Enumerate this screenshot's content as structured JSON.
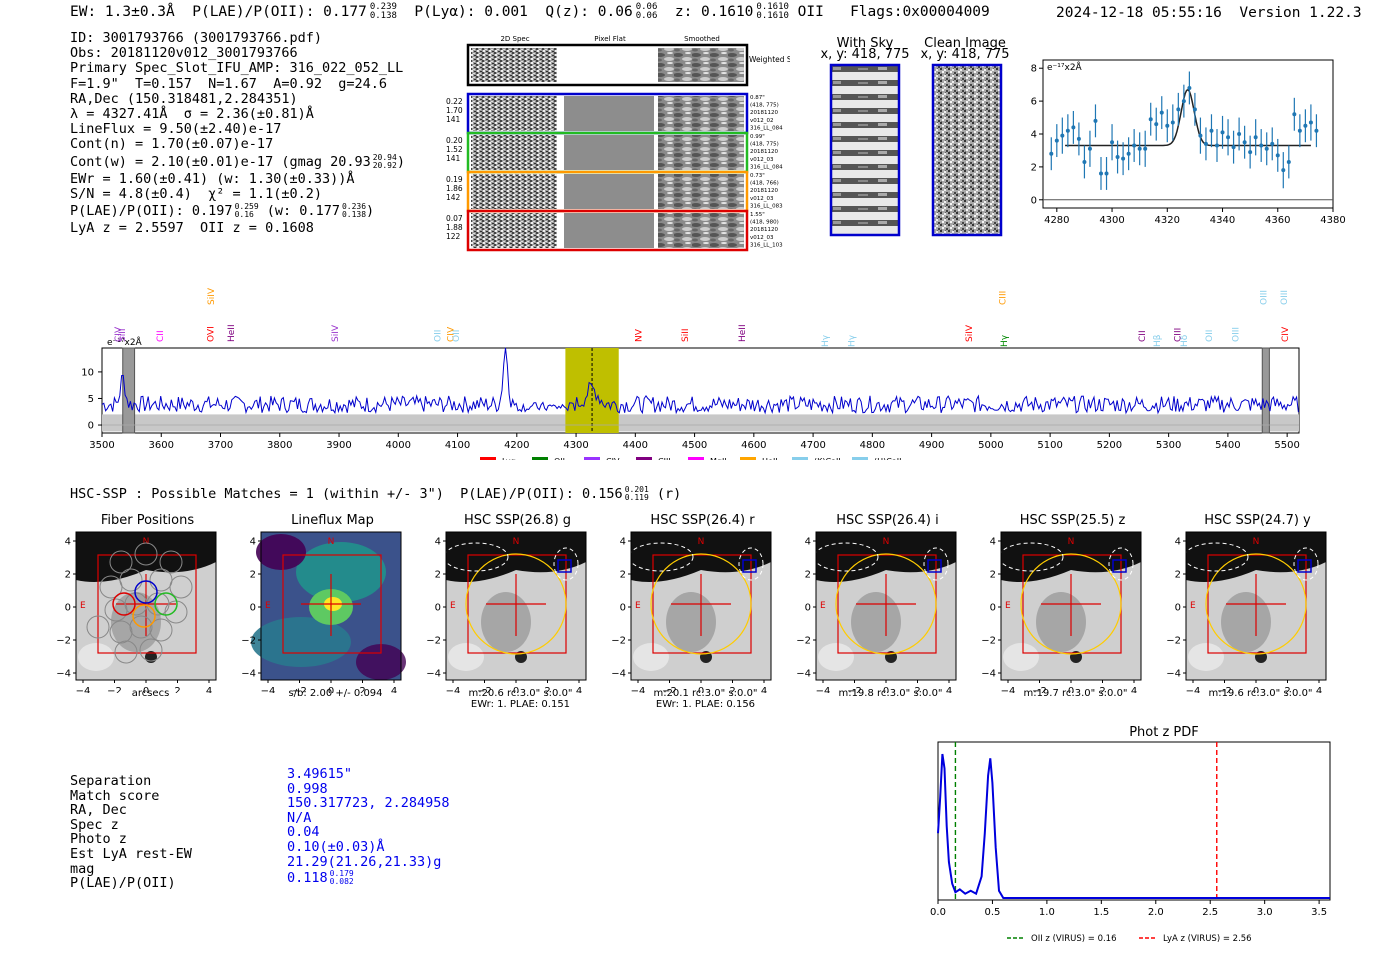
{
  "header": {
    "ew": "EW: 1.3±0.3Å",
    "plae_label": "P(LAE)/P(OII): 0.177",
    "plae_hi": "0.239",
    "plae_lo": "0.138",
    "plya": "P(Lyα): 0.001",
    "q_label": "Q(z): 0.06",
    "q_hi": "0.06",
    "q_lo": "0.06",
    "z_label": "z: 0.1610",
    "z_hi": "0.1610",
    "z_lo": "0.1610",
    "z_line": "OII",
    "flags": "Flags:0x00004009",
    "datetime": "2024-12-18 05:55:16",
    "version": "Version 1.22.3"
  },
  "info": {
    "lines": [
      "ID: 3001793766 (3001793766.pdf)",
      "Obs: 20181120v012_3001793766",
      "Primary Spec_Slot_IFU_AMP: 316_022_052_LL",
      "F=1.9\"  T=0.157  N=1.67  A=0.92  g=24.6",
      "RA,Dec (150.318481,2.284351)",
      "λ = 4327.41Å  σ = 2.36(±0.81)Å",
      "LineFlux = 9.50(±2.40)e-17",
      "Cont(n) = 1.70(±0.07)e-17",
      "Cont(w) = 2.10(±0.01)e-17 (gmag 20.93",
      "EWr = 1.60(±0.41) (w: 1.30(±0.33))Å",
      "S/N = 4.8(±0.4)  χ² = 1.1(±0.2)",
      "P(LAE)/P(OII): 0.197",
      "LyA z = 2.5597  OII z = 0.1608"
    ],
    "gmag_hi": "20.94",
    "gmag_lo": "20.92",
    "plae2_hi": "0.259",
    "plae2_lo": "0.16",
    "plae2_w": "(w: 0.177",
    "plae2_w_hi": "0.236",
    "plae2_w_lo": "0.138"
  },
  "cutouts": {
    "col_titles": [
      "2D Spec",
      "Pixel Flat",
      "Smoothed"
    ],
    "weighted_sum": "Weighted Sum",
    "rows": [
      {
        "left": [
          "0.22",
          "1.70",
          "141"
        ],
        "right": [
          "0.87\"",
          "(418, 775)",
          "20181120",
          "v012_02",
          "316_LL_084"
        ],
        "color": "#0000cc"
      },
      {
        "left": [
          "0.20",
          "1.52",
          "141"
        ],
        "right": [
          "0.99\"",
          "(418, 775)",
          "20181120",
          "v012_03",
          "316_LL_084"
        ],
        "color": "#22bb22"
      },
      {
        "left": [
          "0.19",
          "1.86",
          "142"
        ],
        "right": [
          "0.73\"",
          "(418, 766)",
          "20181120",
          "v012_03",
          "316_LL_083"
        ],
        "color": "#ff9900"
      },
      {
        "left": [
          "0.07",
          "1.88",
          "122"
        ],
        "right": [
          "1.55\"",
          "(418, 980)",
          "20181120",
          "v012_03",
          "316_LL_103"
        ],
        "color": "#dd0000"
      }
    ],
    "with_sky_title": "With Sky",
    "with_sky_coord": "x, y: 418, 775",
    "clean_title": "Clean Image",
    "clean_coord": "x, y: 418, 775"
  },
  "chart_data": [
    {
      "id": "line_fit",
      "type": "scatter",
      "title": "",
      "unit_label": "e⁻¹⁷x2Å",
      "xlim": [
        4275,
        4380
      ],
      "ylim": [
        -0.5,
        8.5
      ],
      "xticks": [
        "4280",
        "4300",
        "4320",
        "4340",
        "4360",
        "4380"
      ],
      "yticks": [
        "0",
        "2",
        "4",
        "6",
        "8"
      ],
      "x": [
        4278,
        4280,
        4282,
        4284,
        4286,
        4288,
        4290,
        4292,
        4294,
        4296,
        4298,
        4300,
        4302,
        4304,
        4306,
        4308,
        4310,
        4312,
        4314,
        4316,
        4318,
        4320,
        4322,
        4324,
        4326,
        4328,
        4330,
        4332,
        4334,
        4336,
        4338,
        4340,
        4342,
        4344,
        4346,
        4348,
        4350,
        4352,
        4354,
        4356,
        4358,
        4360,
        4362,
        4364,
        4366,
        4368,
        4370,
        4372,
        4374
      ],
      "y": [
        2.8,
        3.6,
        3.9,
        4.2,
        4.4,
        3.7,
        2.3,
        3.1,
        4.8,
        1.6,
        1.6,
        3.5,
        2.6,
        2.5,
        2.8,
        3.3,
        3.1,
        3.1,
        4.9,
        4.6,
        5.3,
        4.5,
        4.7,
        5.5,
        6.0,
        6.8,
        5.5,
        3.9,
        3.4,
        4.2,
        3.3,
        4.1,
        3.8,
        3.2,
        4.0,
        3.5,
        2.9,
        3.8,
        3.3,
        3.1,
        3.4,
        2.7,
        1.8,
        2.3,
        5.2,
        4.2,
        4.5,
        4.7,
        4.2
      ],
      "yerr": [
        1.0,
        1.0,
        1.1,
        1.0,
        1.0,
        1.0,
        1.0,
        1.1,
        1.0,
        1.0,
        1.0,
        1.1,
        1.0,
        1.0,
        1.0,
        1.0,
        1.0,
        1.1,
        1.0,
        1.0,
        1.0,
        1.0,
        1.1,
        1.0,
        1.0,
        1.0,
        1.0,
        1.1,
        1.0,
        1.0,
        1.0,
        1.0,
        1.1,
        1.0,
        1.0,
        1.0,
        1.0,
        1.1,
        1.0,
        1.0,
        1.0,
        1.0,
        1.1,
        1.0,
        1.0,
        1.0,
        1.0,
        1.1,
        1.0
      ],
      "fit": {
        "continuum": 3.3,
        "amplitude": 3.4,
        "center": 4327.4,
        "sigma": 2.36
      }
    },
    {
      "id": "full_spectrum",
      "type": "line",
      "unit_label": "e⁻¹⁷x2Å",
      "xlim": [
        3500,
        5520
      ],
      "ylim": [
        -1.5,
        14.5
      ],
      "xticks": [
        "3500",
        "3600",
        "3700",
        "3800",
        "3900",
        "4000",
        "4100",
        "4200",
        "4300",
        "4400",
        "4500",
        "4600",
        "4700",
        "4800",
        "4900",
        "5000",
        "5100",
        "5200",
        "5300",
        "5400",
        "5500"
      ],
      "yticks": [
        "0",
        "5",
        "10"
      ],
      "baseline": 3.9,
      "spikes": [
        {
          "x": 3535,
          "y": 9.0
        },
        {
          "x": 3560,
          "y": 4.0
        },
        {
          "x": 4181,
          "y": 14.5
        },
        {
          "x": 4327,
          "y": 6.8
        }
      ],
      "highlight": [
        4282,
        4372
      ],
      "line_marker": 4327,
      "masked": [
        [
          3535,
          3555
        ],
        [
          5458,
          5470
        ]
      ],
      "emission_labels": [
        {
          "x": 3527,
          "text": "CIV",
          "color": "#9933cc",
          "row": 2
        },
        {
          "x": 3534,
          "text": "SiII",
          "color": "#9933cc",
          "row": 2
        },
        {
          "x": 3598,
          "text": "CII",
          "color": "#ff00ff",
          "row": 2
        },
        {
          "x": 3683,
          "text": "OVI",
          "color": "#ff0000",
          "row": 2
        },
        {
          "x": 3684,
          "text": "SiIV",
          "color": "#ff9900",
          "row": 0
        },
        {
          "x": 3718,
          "text": "HeII",
          "color": "#800080",
          "row": 2
        },
        {
          "x": 3893,
          "text": "SiIV",
          "color": "#9933cc",
          "row": 2
        },
        {
          "x": 4066,
          "text": "OII",
          "color": "#87ceeb",
          "row": 2
        },
        {
          "x": 4088,
          "text": "CIV",
          "color": "#ff9900",
          "row": 2
        },
        {
          "x": 4097,
          "text": "OII",
          "color": "#87ceeb",
          "row": 2
        },
        {
          "x": 4405,
          "text": "NV",
          "color": "#ff0000",
          "row": 2
        },
        {
          "x": 4484,
          "text": "SiII",
          "color": "#ff0000",
          "row": 2
        },
        {
          "x": 4580,
          "text": "HeII",
          "color": "#800080",
          "row": 2
        },
        {
          "x": 4720,
          "text": "Hγ",
          "color": "#87ceeb",
          "row": 3
        },
        {
          "x": 4765,
          "text": "Hγ",
          "color": "#87ceeb",
          "row": 3
        },
        {
          "x": 4963,
          "text": "SiIV",
          "color": "#ff0000",
          "row": 2
        },
        {
          "x": 5020,
          "text": "CIII",
          "color": "#ff9900",
          "row": 0
        },
        {
          "x": 5022,
          "text": "Hγ",
          "color": "#008800",
          "row": 3
        },
        {
          "x": 5255,
          "text": "CII",
          "color": "#800080",
          "row": 2
        },
        {
          "x": 5280,
          "text": "Hβ",
          "color": "#87ceeb",
          "row": 3
        },
        {
          "x": 5315,
          "text": "CIII",
          "color": "#800080",
          "row": 2
        },
        {
          "x": 5326,
          "text": "Hδ",
          "color": "#87ceeb",
          "row": 3
        },
        {
          "x": 5368,
          "text": "OII",
          "color": "#87ceeb",
          "row": 2
        },
        {
          "x": 5413,
          "text": "OIII",
          "color": "#87ceeb",
          "row": 2
        },
        {
          "x": 5460,
          "text": "OIII",
          "color": "#87ceeb",
          "row": 0
        },
        {
          "x": 5495,
          "text": "OIII",
          "color": "#87ceeb",
          "row": 0
        },
        {
          "x": 5496,
          "text": "CIV",
          "color": "#ff0000",
          "row": 2
        }
      ],
      "legend": [
        {
          "label": "Lyα",
          "color": "#ff0000"
        },
        {
          "label": "OII",
          "color": "#008000"
        },
        {
          "label": "CIV",
          "color": "#9933ff"
        },
        {
          "label": "CIII",
          "color": "#800080"
        },
        {
          "label": "MgII",
          "color": "#ff00ff"
        },
        {
          "label": "HeII",
          "color": "#ffa500"
        },
        {
          "label": "(K)CaII",
          "color": "#87ceeb"
        },
        {
          "label": "(H)CaII",
          "color": "#87ceeb"
        }
      ]
    },
    {
      "id": "photz_pdf",
      "type": "line",
      "title": "Phot z PDF",
      "xlim": [
        0,
        3.6
      ],
      "xticks": [
        "0.0",
        "0.5",
        "1.0",
        "1.5",
        "2.0",
        "2.5",
        "3.0",
        "3.5"
      ],
      "x": [
        0.0,
        0.02,
        0.04,
        0.06,
        0.08,
        0.1,
        0.13,
        0.16,
        0.2,
        0.25,
        0.3,
        0.35,
        0.4,
        0.43,
        0.46,
        0.48,
        0.5,
        0.53,
        0.56,
        0.6,
        0.8,
        1.5,
        3.6
      ],
      "y": [
        0.45,
        0.7,
        1.0,
        0.9,
        0.5,
        0.25,
        0.1,
        0.04,
        0.06,
        0.03,
        0.05,
        0.03,
        0.15,
        0.45,
        0.85,
        0.97,
        0.8,
        0.35,
        0.05,
        0.0,
        0.0,
        0.0,
        0.0
      ],
      "vlines": [
        {
          "x": 0.16,
          "color": "#008000",
          "label": "OII z (VIRUS) = 0.16"
        },
        {
          "x": 2.56,
          "color": "#ff0000",
          "label": "LyA z (VIRUS) = 2.56"
        }
      ]
    }
  ],
  "hsc": {
    "title": "HSC-SSP : Possible Matches = 1 (within +/- 3\")  P(LAE)/P(OII): 0.156",
    "title_hi": "0.201",
    "title_lo": "0.119",
    "title_band": "(r)",
    "axis_ticks": [
      "−4",
      "−2",
      "0",
      "2",
      "4"
    ],
    "n_label": "N",
    "e_label": "E",
    "panels": [
      {
        "title": "Fiber Positions",
        "caption1": "arcsecs",
        "caption2": "",
        "kind": "fiber"
      },
      {
        "title": "Lineflux Map",
        "caption1": "s/b: 2.00 +/- 0.094",
        "caption2": "",
        "kind": "flux"
      },
      {
        "title": "HSC SSP(26.8) g",
        "caption1": "m:20.6 rc:3.0\"  s:0.0\"",
        "caption2": "EWr: 1. PLAE: 0.151",
        "kind": "img"
      },
      {
        "title": "HSC SSP(26.4) r",
        "caption1": "m:20.1 rc:3.0\"  s:0.0\"",
        "caption2": "EWr: 1. PLAE: 0.156",
        "kind": "img"
      },
      {
        "title": "HSC SSP(26.4) i",
        "caption1": "m:19.8 rc:3.0\"  s:0.0\"",
        "caption2": "",
        "kind": "img"
      },
      {
        "title": "HSC SSP(25.5) z",
        "caption1": "m:19.7 rc:3.0\"  s:0.0\"",
        "caption2": "",
        "kind": "img"
      },
      {
        "title": "HSC SSP(24.7) y",
        "caption1": "m:19.6 rc:3.0\"  s:0.0\"",
        "caption2": "",
        "kind": "img"
      }
    ]
  },
  "match": {
    "labels": [
      "Separation",
      "Match score",
      "RA, Dec",
      "Spec z",
      "Photo z",
      "Est LyA rest-EW",
      "mag",
      "P(LAE)/P(OII)"
    ],
    "values": [
      "3.49615\"",
      "0.998",
      "150.317723, 2.284958",
      "N/A",
      "0.04",
      "0.10(±0.03)Å",
      "21.29(21.26,21.33)g",
      "0.118"
    ],
    "plae_hi": "0.179",
    "plae_lo": "0.082"
  }
}
